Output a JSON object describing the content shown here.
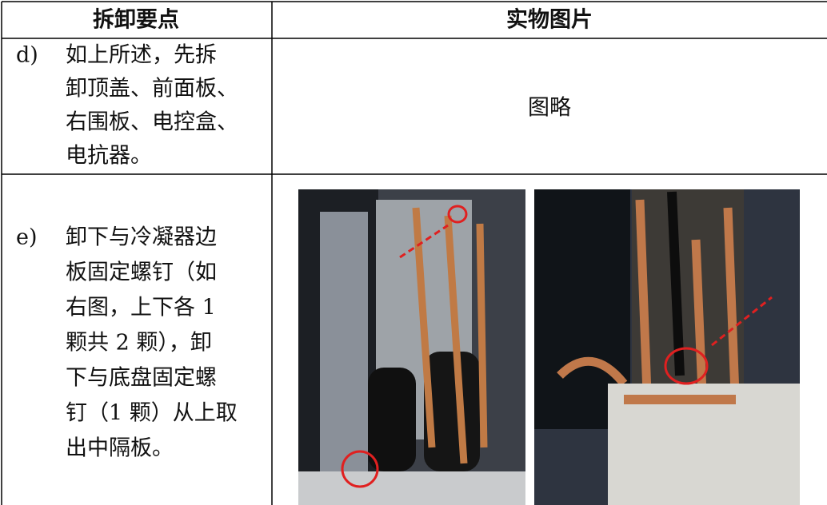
{
  "table": {
    "header": [
      "拆卸要点",
      "实物图片"
    ],
    "rows": [
      {
        "step": "d)",
        "lines": [
          "如上所述，先拆",
          "卸顶盖、前面板、",
          "右围板、电控盒、",
          "电抗器。"
        ],
        "picture": "图略"
      },
      {
        "step": "e)",
        "lines": [
          "卸下与冷凝器边",
          "板固定螺钉（如",
          "右图，上下各 1",
          "颗共 2 颗），卸",
          "下与底盘固定螺",
          "钉（1 颗）从上取",
          "出中隔板。"
        ]
      }
    ]
  }
}
